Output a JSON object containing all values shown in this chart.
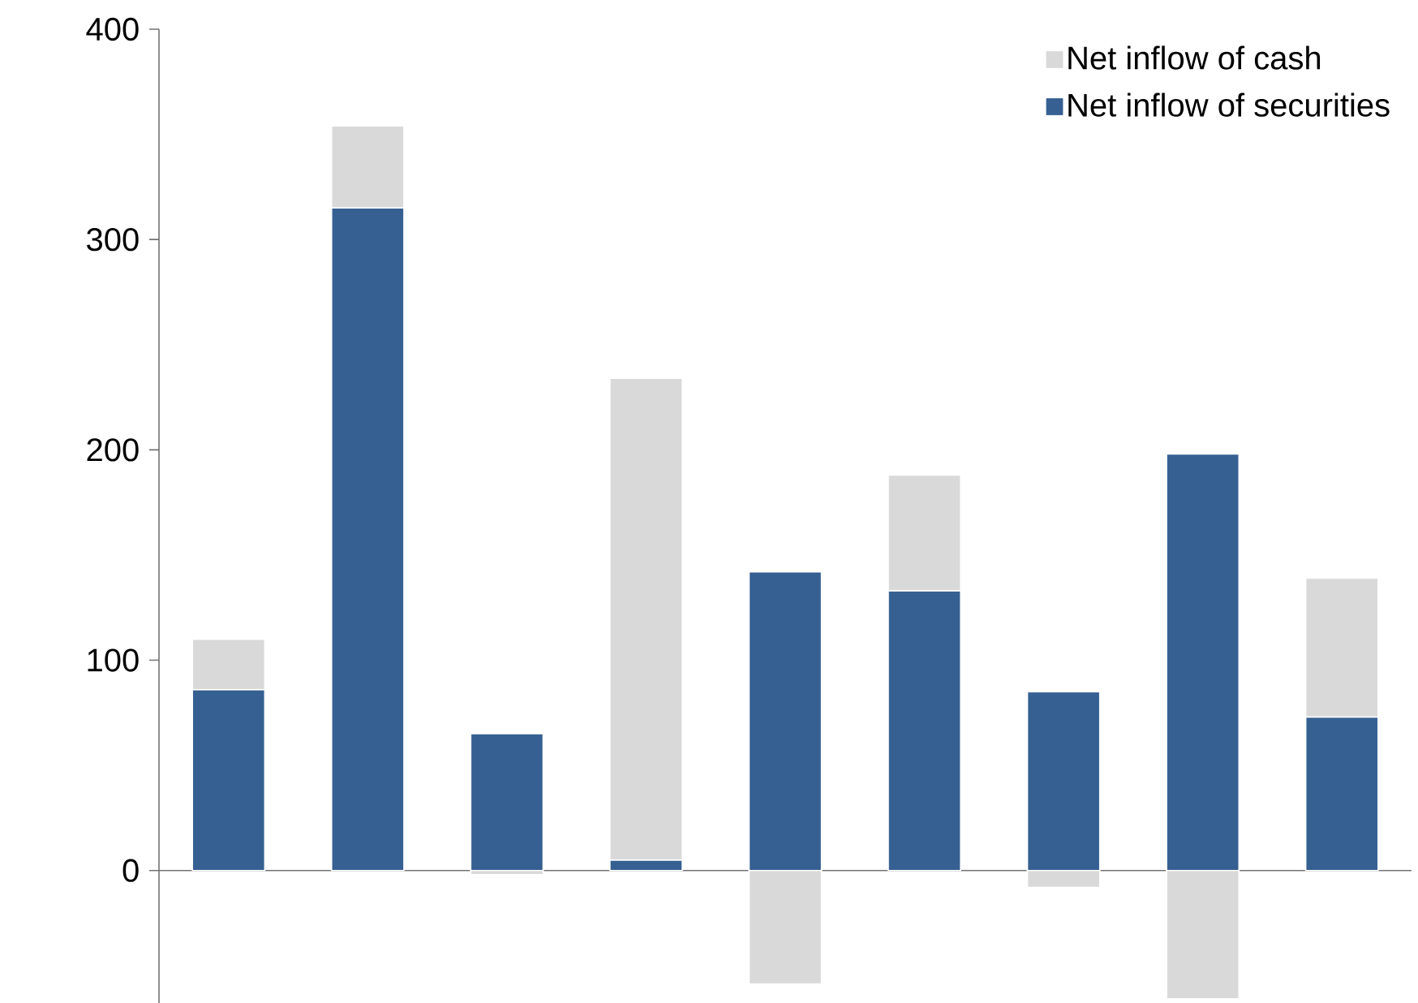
{
  "chart_data": {
    "type": "bar",
    "stacked": true,
    "categories": [
      null,
      null,
      null,
      null,
      null,
      null,
      null,
      null,
      null
    ],
    "series": [
      {
        "name": "Net inflow of securities",
        "color": "#366092",
        "values": [
          86,
          315,
          65,
          5,
          142,
          133,
          85,
          198,
          73
        ]
      },
      {
        "name": "Net inflow of cash",
        "color": "#d9d9d9",
        "values": [
          24,
          39,
          -2,
          229,
          -54,
          55,
          -8,
          -61,
          66
        ]
      }
    ],
    "ylim": [
      -63,
      400
    ],
    "yticks": [
      0,
      100,
      200,
      300,
      400
    ],
    "legend": "top right"
  }
}
